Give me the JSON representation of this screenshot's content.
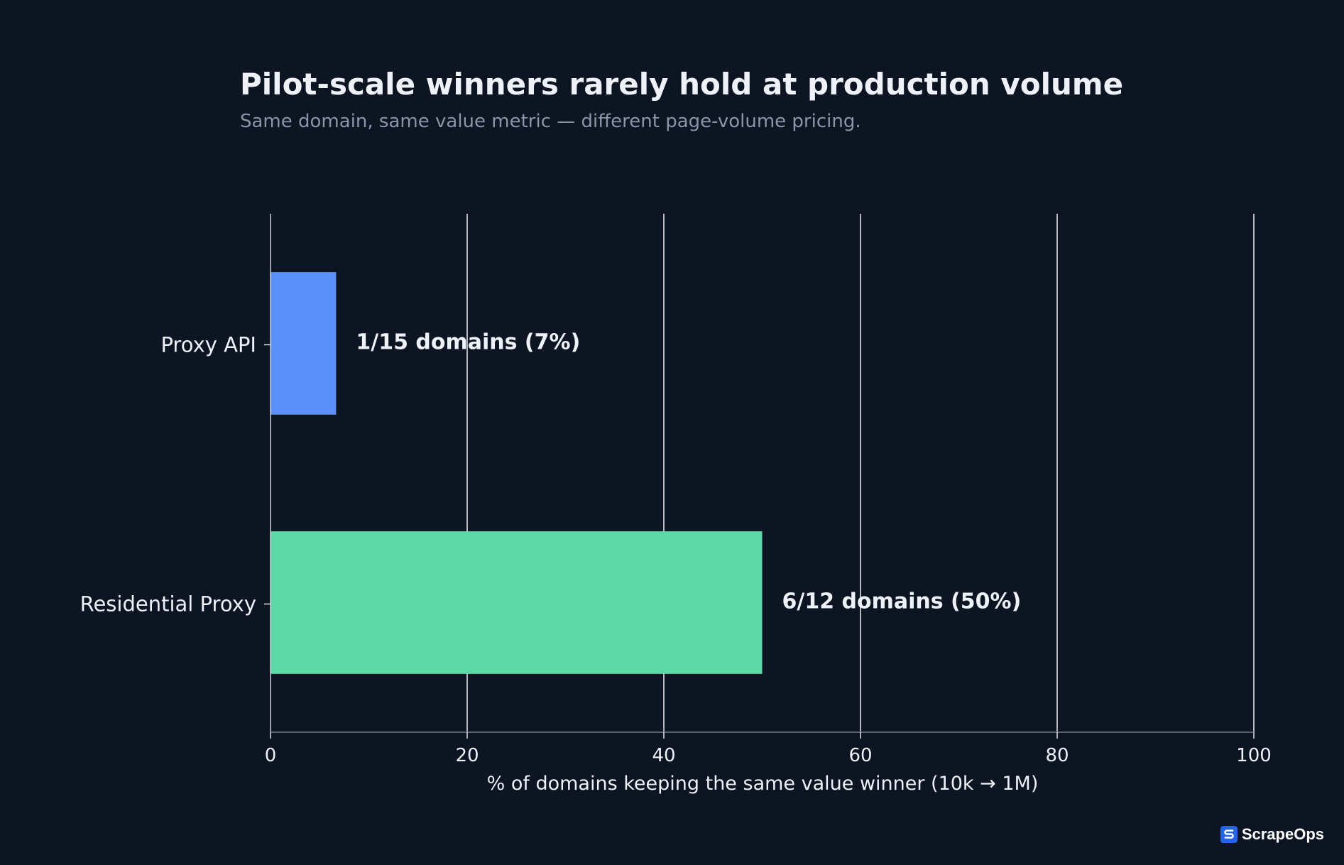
{
  "chart_data": {
    "type": "bar",
    "orientation": "horizontal",
    "title": "Pilot-scale winners rarely hold at production volume",
    "subtitle": "Same domain, same value metric — different page-volume pricing.",
    "xlabel": "% of domains keeping the same value winner (10k → 1M)",
    "ylabel": "",
    "xlim": [
      0,
      100
    ],
    "xticks": [
      0,
      20,
      40,
      60,
      80,
      100
    ],
    "grid": "vertical",
    "categories": [
      "Proxy API",
      "Residential Proxy"
    ],
    "values": [
      6.67,
      50
    ],
    "data_labels": [
      "1/15 domains (7%)",
      "6/12 domains (50%)"
    ],
    "colors": [
      "#5b8ff9",
      "#5cd9a6"
    ]
  },
  "branding": {
    "logo_text": "ScrapeOps",
    "logo_icon": "scrapeops-logo-icon"
  }
}
